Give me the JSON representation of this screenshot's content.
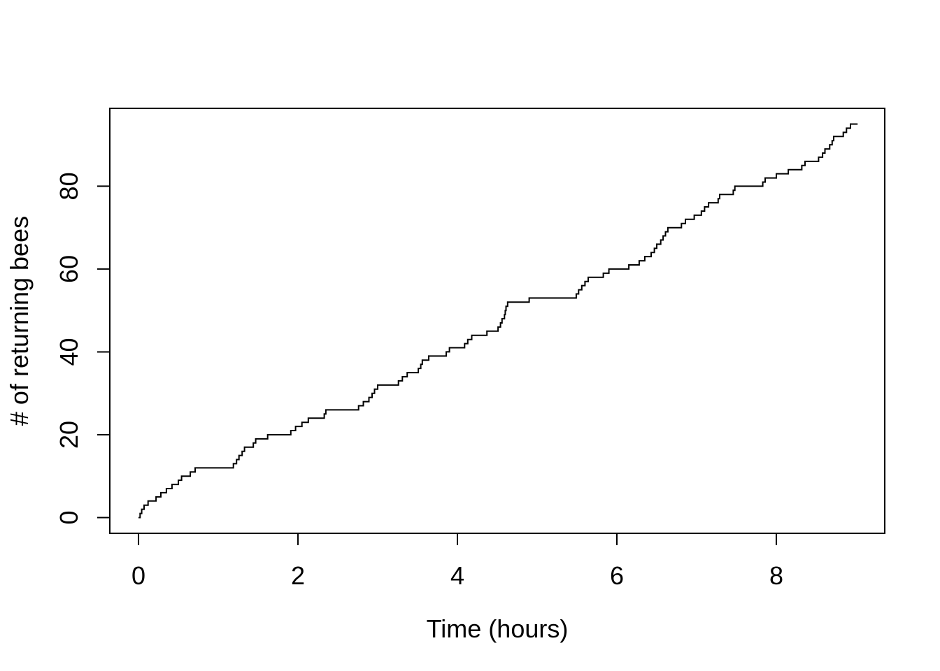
{
  "figure": {
    "background": "#ffffff",
    "line_color": "#000000",
    "axis_color": "#000000"
  },
  "chart_data": {
    "type": "line",
    "subtype": "step-cumulative",
    "title": "",
    "xlabel": "Time (hours)",
    "ylabel": "# of returning bees",
    "xticks": [
      0,
      2,
      4,
      6,
      8
    ],
    "yticks": [
      0,
      20,
      40,
      60,
      80
    ],
    "xlim": [
      -0.36,
      9.36
    ],
    "ylim": [
      -3.8,
      98.8
    ],
    "grid": false,
    "legend_position": "none",
    "start_point": [
      0,
      0
    ],
    "end_time": 9.02,
    "final_count": 95,
    "steps": [
      [
        0.02,
        1
      ],
      [
        0.04,
        2
      ],
      [
        0.07,
        3
      ],
      [
        0.12,
        4
      ],
      [
        0.22,
        5
      ],
      [
        0.28,
        6
      ],
      [
        0.35,
        7
      ],
      [
        0.42,
        8
      ],
      [
        0.5,
        9
      ],
      [
        0.54,
        10
      ],
      [
        0.65,
        11
      ],
      [
        0.71,
        12
      ],
      [
        1.19,
        13
      ],
      [
        1.23,
        14
      ],
      [
        1.26,
        15
      ],
      [
        1.3,
        16
      ],
      [
        1.33,
        17
      ],
      [
        1.44,
        18
      ],
      [
        1.47,
        19
      ],
      [
        1.62,
        20
      ],
      [
        1.91,
        21
      ],
      [
        1.97,
        22
      ],
      [
        2.05,
        23
      ],
      [
        2.13,
        24
      ],
      [
        2.33,
        25
      ],
      [
        2.35,
        26
      ],
      [
        2.76,
        27
      ],
      [
        2.82,
        28
      ],
      [
        2.89,
        29
      ],
      [
        2.93,
        30
      ],
      [
        2.96,
        31
      ],
      [
        3.0,
        32
      ],
      [
        3.26,
        33
      ],
      [
        3.31,
        34
      ],
      [
        3.37,
        35
      ],
      [
        3.51,
        36
      ],
      [
        3.54,
        37
      ],
      [
        3.56,
        38
      ],
      [
        3.64,
        39
      ],
      [
        3.86,
        40
      ],
      [
        3.9,
        41
      ],
      [
        4.09,
        42
      ],
      [
        4.13,
        43
      ],
      [
        4.18,
        44
      ],
      [
        4.37,
        45
      ],
      [
        4.51,
        46
      ],
      [
        4.54,
        47
      ],
      [
        4.56,
        48
      ],
      [
        4.59,
        49
      ],
      [
        4.6,
        50
      ],
      [
        4.61,
        51
      ],
      [
        4.63,
        52
      ],
      [
        4.9,
        53
      ],
      [
        5.49,
        54
      ],
      [
        5.52,
        55
      ],
      [
        5.56,
        56
      ],
      [
        5.6,
        57
      ],
      [
        5.64,
        58
      ],
      [
        5.83,
        59
      ],
      [
        5.9,
        60
      ],
      [
        6.15,
        61
      ],
      [
        6.28,
        62
      ],
      [
        6.35,
        63
      ],
      [
        6.43,
        64
      ],
      [
        6.47,
        65
      ],
      [
        6.5,
        66
      ],
      [
        6.55,
        67
      ],
      [
        6.58,
        68
      ],
      [
        6.61,
        69
      ],
      [
        6.64,
        70
      ],
      [
        6.81,
        71
      ],
      [
        6.86,
        72
      ],
      [
        6.97,
        73
      ],
      [
        7.06,
        74
      ],
      [
        7.1,
        75
      ],
      [
        7.15,
        76
      ],
      [
        7.27,
        77
      ],
      [
        7.29,
        78
      ],
      [
        7.46,
        79
      ],
      [
        7.48,
        80
      ],
      [
        7.83,
        81
      ],
      [
        7.86,
        82
      ],
      [
        8.0,
        83
      ],
      [
        8.15,
        84
      ],
      [
        8.32,
        85
      ],
      [
        8.36,
        86
      ],
      [
        8.53,
        87
      ],
      [
        8.58,
        88
      ],
      [
        8.61,
        89
      ],
      [
        8.67,
        90
      ],
      [
        8.7,
        91
      ],
      [
        8.72,
        92
      ],
      [
        8.84,
        93
      ],
      [
        8.88,
        94
      ],
      [
        8.93,
        95
      ]
    ]
  }
}
